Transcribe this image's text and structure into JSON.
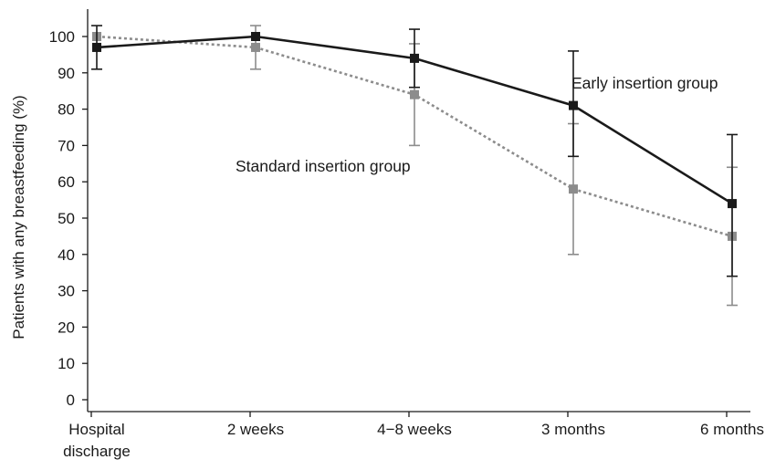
{
  "chart_data": {
    "type": "line",
    "title": "",
    "xlabel": "",
    "ylabel": "Patients with any breastfeeding (%)",
    "ylim": [
      0,
      100
    ],
    "yticks": [
      0,
      10,
      20,
      30,
      40,
      50,
      60,
      70,
      80,
      90,
      100
    ],
    "grid": false,
    "legend": "none",
    "categories": [
      [
        "Hospital",
        "discharge"
      ],
      [
        "2 weeks"
      ],
      [
        "4−8 weeks"
      ],
      [
        "3 months"
      ],
      [
        "6 months"
      ]
    ],
    "series": [
      {
        "name": "Early insertion group",
        "color": "#1a1a1a",
        "line_style": "solid",
        "values": [
          97,
          100,
          94,
          81,
          54
        ],
        "error_low": [
          91,
          100,
          86,
          67,
          34
        ],
        "error_high": [
          103,
          100,
          102,
          96,
          73
        ]
      },
      {
        "name": "Standard insertion group",
        "color": "#8c8c8c",
        "line_style": "dotted",
        "values": [
          100,
          97,
          84,
          58,
          45
        ],
        "error_low": [
          100,
          91,
          70,
          40,
          26
        ],
        "error_high": [
          100,
          103,
          98,
          76,
          64
        ]
      }
    ]
  }
}
